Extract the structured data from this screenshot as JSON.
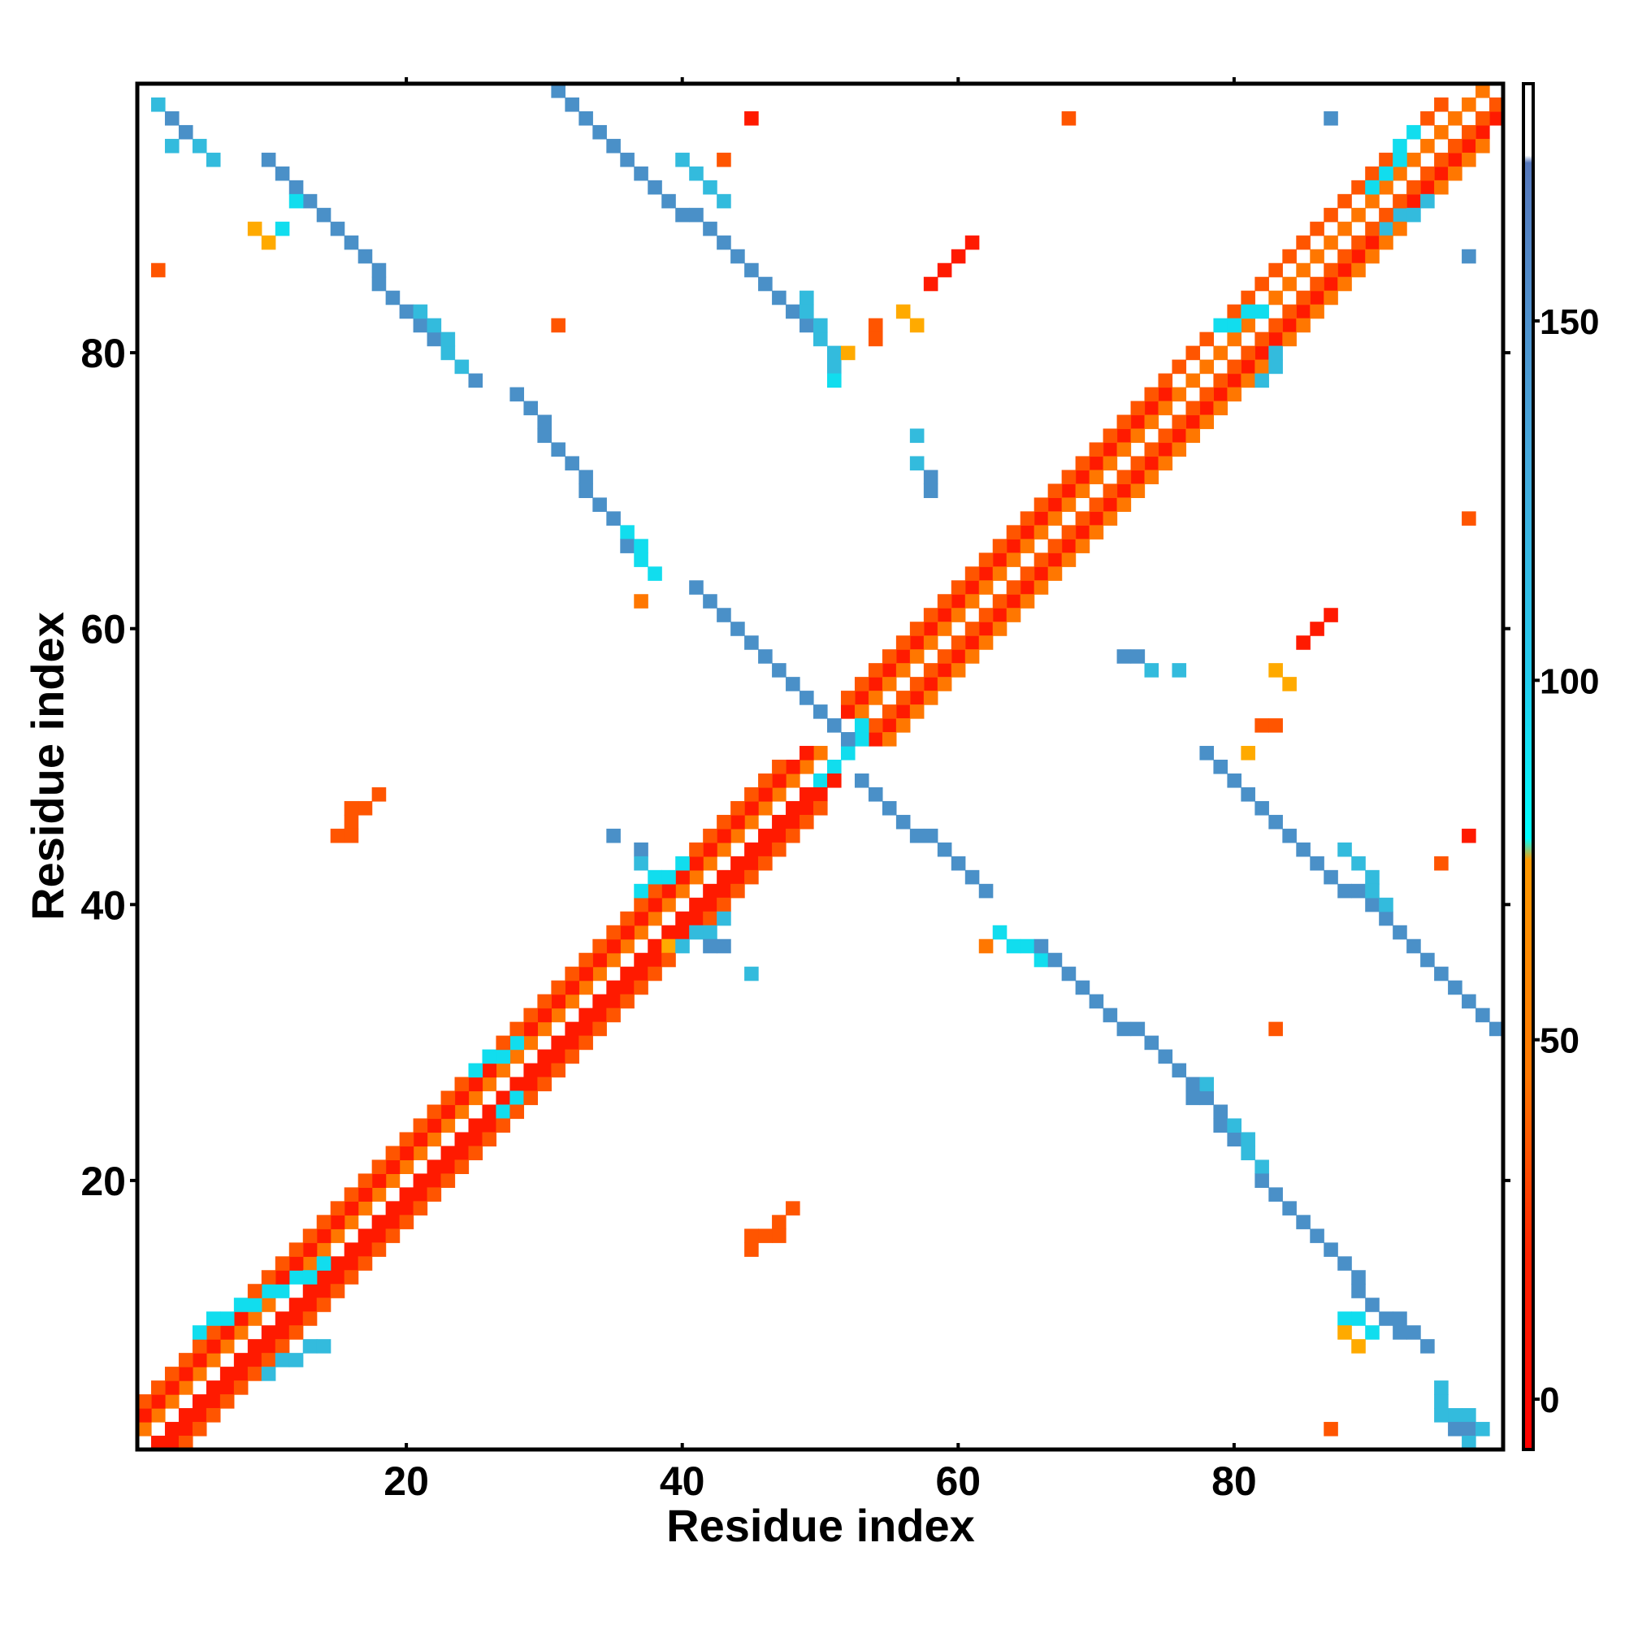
{
  "chart_data": {
    "type": "heatmap",
    "title": "",
    "xlabel": "Residue index",
    "ylabel": "Residue index",
    "xlim": [
      1,
      99
    ],
    "ylim": [
      1,
      99
    ],
    "xticks": [
      20,
      40,
      60,
      80
    ],
    "yticks": [
      20,
      40,
      60,
      80
    ],
    "grid": false,
    "colorbar": {
      "range": [
        -7,
        183
      ],
      "ticks": [
        0,
        50,
        100,
        150
      ],
      "stops": [
        {
          "v": -7,
          "color": "#ff0000"
        },
        {
          "v": 20,
          "color": "#ff2200"
        },
        {
          "v": 45,
          "color": "#ff7700"
        },
        {
          "v": 75,
          "color": "#ff9900"
        },
        {
          "v": 78,
          "color": "#00ffff"
        },
        {
          "v": 100,
          "color": "#22ccee"
        },
        {
          "v": 130,
          "color": "#44aadd"
        },
        {
          "v": 152,
          "color": "#4f8fcc"
        },
        {
          "v": 172,
          "color": "#5577bb"
        },
        {
          "v": 173,
          "color": "#ffffff"
        },
        {
          "v": 183,
          "color": "#ffffff"
        }
      ]
    },
    "palette": {
      "red": "#ff1a00",
      "orange_red": "#ff5500",
      "orange": "#ff7700",
      "amber": "#ffaa00",
      "cyan": "#11ddee",
      "light_blue": "#33bbdd",
      "steel_blue": "#4a90c8",
      "dark_blue": "#5b80c2"
    },
    "bands": [
      {
        "color": "red",
        "from": [
          2,
          1
        ],
        "to": [
          51,
          50
        ]
      },
      {
        "color": "orange",
        "from": [
          1,
          2
        ],
        "to": [
          50,
          51
        ]
      },
      {
        "color": "red",
        "from": [
          1,
          3
        ],
        "to": [
          49,
          51
        ]
      },
      {
        "color": "red",
        "from": [
          3,
          1
        ],
        "to": [
          51,
          49
        ]
      },
      {
        "color": "orange_red",
        "from": [
          4,
          1
        ],
        "to": [
          50,
          47
        ]
      },
      {
        "color": "orange_red",
        "from": [
          1,
          4
        ],
        "to": [
          47,
          50
        ]
      },
      {
        "color": "red",
        "from": [
          52,
          54
        ],
        "to": [
          98,
          99
        ]
      },
      {
        "color": "red",
        "from": [
          54,
          52
        ],
        "to": [
          99,
          97
        ]
      },
      {
        "color": "orange",
        "from": [
          53,
          54
        ],
        "to": [
          98,
          99
        ]
      },
      {
        "color": "orange_red",
        "from": [
          54,
          53
        ],
        "to": [
          99,
          98
        ]
      },
      {
        "color": "orange",
        "from": [
          55,
          52
        ],
        "to": [
          98,
          95
        ]
      },
      {
        "color": "orange_red",
        "from": [
          52,
          55
        ],
        "to": [
          95,
          98
        ]
      },
      {
        "color": "cyan",
        "from": [
          5,
          9
        ],
        "to": [
          14,
          14
        ]
      },
      {
        "color": "light_blue",
        "from": [
          10,
          6
        ],
        "to": [
          14,
          8
        ]
      },
      {
        "color": "cyan",
        "from": [
          25,
          28
        ],
        "to": [
          28,
          30
        ]
      },
      {
        "color": "cyan",
        "from": [
          27,
          25
        ],
        "to": [
          28,
          26
        ]
      },
      {
        "color": "cyan",
        "from": [
          37,
          41
        ],
        "to": [
          40,
          43
        ]
      },
      {
        "color": "light_blue",
        "from": [
          40,
          37
        ],
        "to": [
          43,
          39
        ]
      },
      {
        "color": "cyan",
        "from": [
          79,
          82
        ],
        "to": [
          82,
          83
        ]
      },
      {
        "color": "light_blue",
        "from": [
          82,
          78
        ],
        "to": [
          83,
          80
        ]
      },
      {
        "color": "cyan",
        "from": [
          90,
          92
        ],
        "to": [
          93,
          96
        ]
      },
      {
        "color": "light_blue",
        "from": [
          91,
          89
        ],
        "to": [
          94,
          91
        ]
      },
      {
        "color": "cyan",
        "from": [
          50,
          49
        ],
        "to": [
          52,
          51
        ]
      },
      {
        "color": "cyan",
        "from": [
          52,
          51
        ],
        "to": [
          53,
          53
        ]
      },
      {
        "color": "steel_blue",
        "from": [
          10,
          94
        ],
        "to": [
          25,
          78
        ]
      },
      {
        "color": "light_blue",
        "from": [
          21,
          83
        ],
        "to": [
          24,
          79
        ]
      },
      {
        "color": "steel_blue",
        "from": [
          28,
          77
        ],
        "to": [
          38,
          64
        ]
      },
      {
        "color": "cyan",
        "from": [
          36,
          67
        ],
        "to": [
          38,
          64
        ]
      },
      {
        "color": "steel_blue",
        "from": [
          41,
          63
        ],
        "to": [
          52,
          52
        ]
      },
      {
        "color": "steel_blue",
        "from": [
          53,
          49
        ],
        "to": [
          62,
          41
        ]
      },
      {
        "color": "cyan",
        "from": [
          63,
          38
        ],
        "to": [
          66,
          36
        ]
      },
      {
        "color": "steel_blue",
        "from": [
          66,
          37
        ],
        "to": [
          79,
          25
        ]
      },
      {
        "color": "steel_blue",
        "from": [
          79,
          24
        ],
        "to": [
          92,
          9
        ]
      },
      {
        "color": "light_blue",
        "from": [
          80,
          24
        ],
        "to": [
          82,
          21
        ]
      },
      {
        "color": "cyan",
        "from": [
          88,
          10
        ],
        "to": [
          90,
          9
        ]
      },
      {
        "color": "steel_blue",
        "from": [
          78,
          51
        ],
        "to": [
          99,
          31
        ]
      },
      {
        "color": "light_blue",
        "from": [
          88,
          44
        ],
        "to": [
          91,
          40
        ]
      },
      {
        "color": "steel_blue",
        "from": [
          31,
          99
        ],
        "to": [
          51,
          80
        ]
      },
      {
        "color": "light_blue",
        "from": [
          40,
          94
        ],
        "to": [
          43,
          91
        ]
      },
      {
        "color": "light_blue",
        "from": [
          49,
          84
        ],
        "to": [
          51,
          79
        ]
      }
    ],
    "points": [
      {
        "x": 2,
        "y": 98,
        "color": "light_blue"
      },
      {
        "x": 3,
        "y": 97,
        "color": "steel_blue"
      },
      {
        "x": 4,
        "y": 96,
        "color": "steel_blue"
      },
      {
        "x": 3,
        "y": 95,
        "color": "light_blue"
      },
      {
        "x": 5,
        "y": 95,
        "color": "light_blue"
      },
      {
        "x": 6,
        "y": 94,
        "color": "light_blue"
      },
      {
        "x": 2,
        "y": 86,
        "color": "orange_red"
      },
      {
        "x": 9,
        "y": 89,
        "color": "amber"
      },
      {
        "x": 10,
        "y": 88,
        "color": "amber"
      },
      {
        "x": 11,
        "y": 89,
        "color": "cyan"
      },
      {
        "x": 12,
        "y": 91,
        "color": "cyan"
      },
      {
        "x": 45,
        "y": 97,
        "color": "red"
      },
      {
        "x": 43,
        "y": 94,
        "color": "orange_red"
      },
      {
        "x": 68,
        "y": 97,
        "color": "orange_red"
      },
      {
        "x": 31,
        "y": 82,
        "color": "orange_red"
      },
      {
        "x": 58,
        "y": 85,
        "color": "red"
      },
      {
        "x": 59,
        "y": 86,
        "color": "red"
      },
      {
        "x": 60,
        "y": 87,
        "color": "red"
      },
      {
        "x": 61,
        "y": 88,
        "color": "red"
      },
      {
        "x": 56,
        "y": 83,
        "color": "amber"
      },
      {
        "x": 57,
        "y": 82,
        "color": "amber"
      },
      {
        "x": 54,
        "y": 82,
        "color": "orange_red"
      },
      {
        "x": 54,
        "y": 81,
        "color": "orange_red"
      },
      {
        "x": 52,
        "y": 80,
        "color": "amber"
      },
      {
        "x": 51,
        "y": 78,
        "color": "cyan"
      },
      {
        "x": 57,
        "y": 74,
        "color": "light_blue"
      },
      {
        "x": 57,
        "y": 72,
        "color": "light_blue"
      },
      {
        "x": 58,
        "y": 71,
        "color": "steel_blue"
      },
      {
        "x": 58,
        "y": 70,
        "color": "steel_blue"
      },
      {
        "x": 37,
        "y": 62,
        "color": "orange"
      },
      {
        "x": 87,
        "y": 61,
        "color": "red"
      },
      {
        "x": 86,
        "y": 60,
        "color": "red"
      },
      {
        "x": 85,
        "y": 59,
        "color": "red"
      },
      {
        "x": 72,
        "y": 58,
        "color": "steel_blue"
      },
      {
        "x": 73,
        "y": 58,
        "color": "steel_blue"
      },
      {
        "x": 74,
        "y": 57,
        "color": "light_blue"
      },
      {
        "x": 76,
        "y": 57,
        "color": "light_blue"
      },
      {
        "x": 83,
        "y": 57,
        "color": "amber"
      },
      {
        "x": 84,
        "y": 56,
        "color": "amber"
      },
      {
        "x": 82,
        "y": 53,
        "color": "orange_red"
      },
      {
        "x": 83,
        "y": 53,
        "color": "orange_red"
      },
      {
        "x": 81,
        "y": 51,
        "color": "amber"
      },
      {
        "x": 97,
        "y": 68,
        "color": "orange_red"
      },
      {
        "x": 97,
        "y": 45,
        "color": "red"
      },
      {
        "x": 95,
        "y": 43,
        "color": "orange_red"
      },
      {
        "x": 97,
        "y": 87,
        "color": "steel_blue"
      },
      {
        "x": 87,
        "y": 97,
        "color": "steel_blue"
      },
      {
        "x": 18,
        "y": 48,
        "color": "orange_red"
      },
      {
        "x": 17,
        "y": 47,
        "color": "orange_red"
      },
      {
        "x": 16,
        "y": 47,
        "color": "orange_red"
      },
      {
        "x": 16,
        "y": 46,
        "color": "orange_red"
      },
      {
        "x": 15,
        "y": 45,
        "color": "orange_red"
      },
      {
        "x": 16,
        "y": 45,
        "color": "orange_red"
      },
      {
        "x": 35,
        "y": 45,
        "color": "steel_blue"
      },
      {
        "x": 37,
        "y": 44,
        "color": "steel_blue"
      },
      {
        "x": 37,
        "y": 43,
        "color": "light_blue"
      },
      {
        "x": 42,
        "y": 37,
        "color": "steel_blue"
      },
      {
        "x": 43,
        "y": 37,
        "color": "steel_blue"
      },
      {
        "x": 45,
        "y": 35,
        "color": "light_blue"
      },
      {
        "x": 39,
        "y": 37,
        "color": "amber"
      },
      {
        "x": 62,
        "y": 37,
        "color": "orange"
      },
      {
        "x": 83,
        "y": 31,
        "color": "orange_red"
      },
      {
        "x": 78,
        "y": 27,
        "color": "light_blue"
      },
      {
        "x": 77,
        "y": 26,
        "color": "steel_blue"
      },
      {
        "x": 48,
        "y": 18,
        "color": "orange_red"
      },
      {
        "x": 47,
        "y": 17,
        "color": "orange_red"
      },
      {
        "x": 46,
        "y": 16,
        "color": "orange_red"
      },
      {
        "x": 47,
        "y": 16,
        "color": "orange_red"
      },
      {
        "x": 45,
        "y": 16,
        "color": "orange_red"
      },
      {
        "x": 45,
        "y": 15,
        "color": "orange_red"
      },
      {
        "x": 89,
        "y": 8,
        "color": "amber"
      },
      {
        "x": 88,
        "y": 9,
        "color": "amber"
      },
      {
        "x": 92,
        "y": 10,
        "color": "steel_blue"
      },
      {
        "x": 93,
        "y": 9,
        "color": "steel_blue"
      },
      {
        "x": 94,
        "y": 8,
        "color": "steel_blue"
      },
      {
        "x": 95,
        "y": 5,
        "color": "light_blue"
      },
      {
        "x": 95,
        "y": 4,
        "color": "light_blue"
      },
      {
        "x": 95,
        "y": 3,
        "color": "light_blue"
      },
      {
        "x": 96,
        "y": 3,
        "color": "light_blue"
      },
      {
        "x": 97,
        "y": 3,
        "color": "light_blue"
      },
      {
        "x": 96,
        "y": 2,
        "color": "steel_blue"
      },
      {
        "x": 97,
        "y": 2,
        "color": "steel_blue"
      },
      {
        "x": 98,
        "y": 2,
        "color": "light_blue"
      },
      {
        "x": 97,
        "y": 1,
        "color": "light_blue"
      },
      {
        "x": 87,
        "y": 2,
        "color": "orange_red"
      }
    ]
  }
}
